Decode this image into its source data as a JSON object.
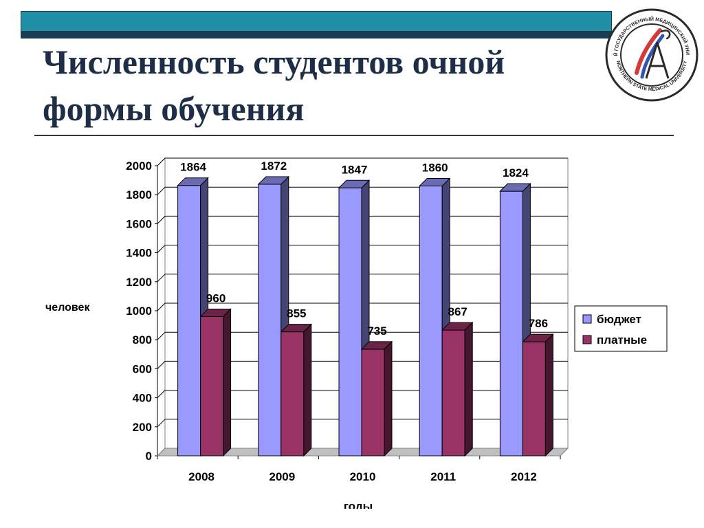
{
  "slide": {
    "title": "Численность студентов очной формы обучения"
  },
  "logo": {
    "ring_text_top": "СЕВЕРНЫЙ ГОСУДАРСТВЕННЫЙ МЕДИЦИНСКИЙ УНИВЕРСИТЕТ",
    "ring_text_bottom": "NORTHERN STATE MEDICAL UNIVERSITY",
    "colors": {
      "red": "#d43a3a",
      "blue": "#2f56b0",
      "ring": "#2a2a2a"
    }
  },
  "chart_data": {
    "type": "bar",
    "categories": [
      "2008",
      "2009",
      "2010",
      "2011",
      "2012"
    ],
    "series": [
      {
        "name": "бюджет",
        "values": [
          1864,
          1872,
          1847,
          1860,
          1824
        ],
        "color": "#9999ff"
      },
      {
        "name": "платные",
        "values": [
          960,
          855,
          735,
          867,
          786
        ],
        "color": "#993366"
      }
    ],
    "xlabel": "годы",
    "ylabel": "человек",
    "ylim": [
      0,
      2000
    ],
    "yticks": [
      0,
      200,
      400,
      600,
      800,
      1000,
      1200,
      1400,
      1600,
      1800,
      2000
    ],
    "grid": true,
    "legend": "right",
    "style": "3d"
  }
}
